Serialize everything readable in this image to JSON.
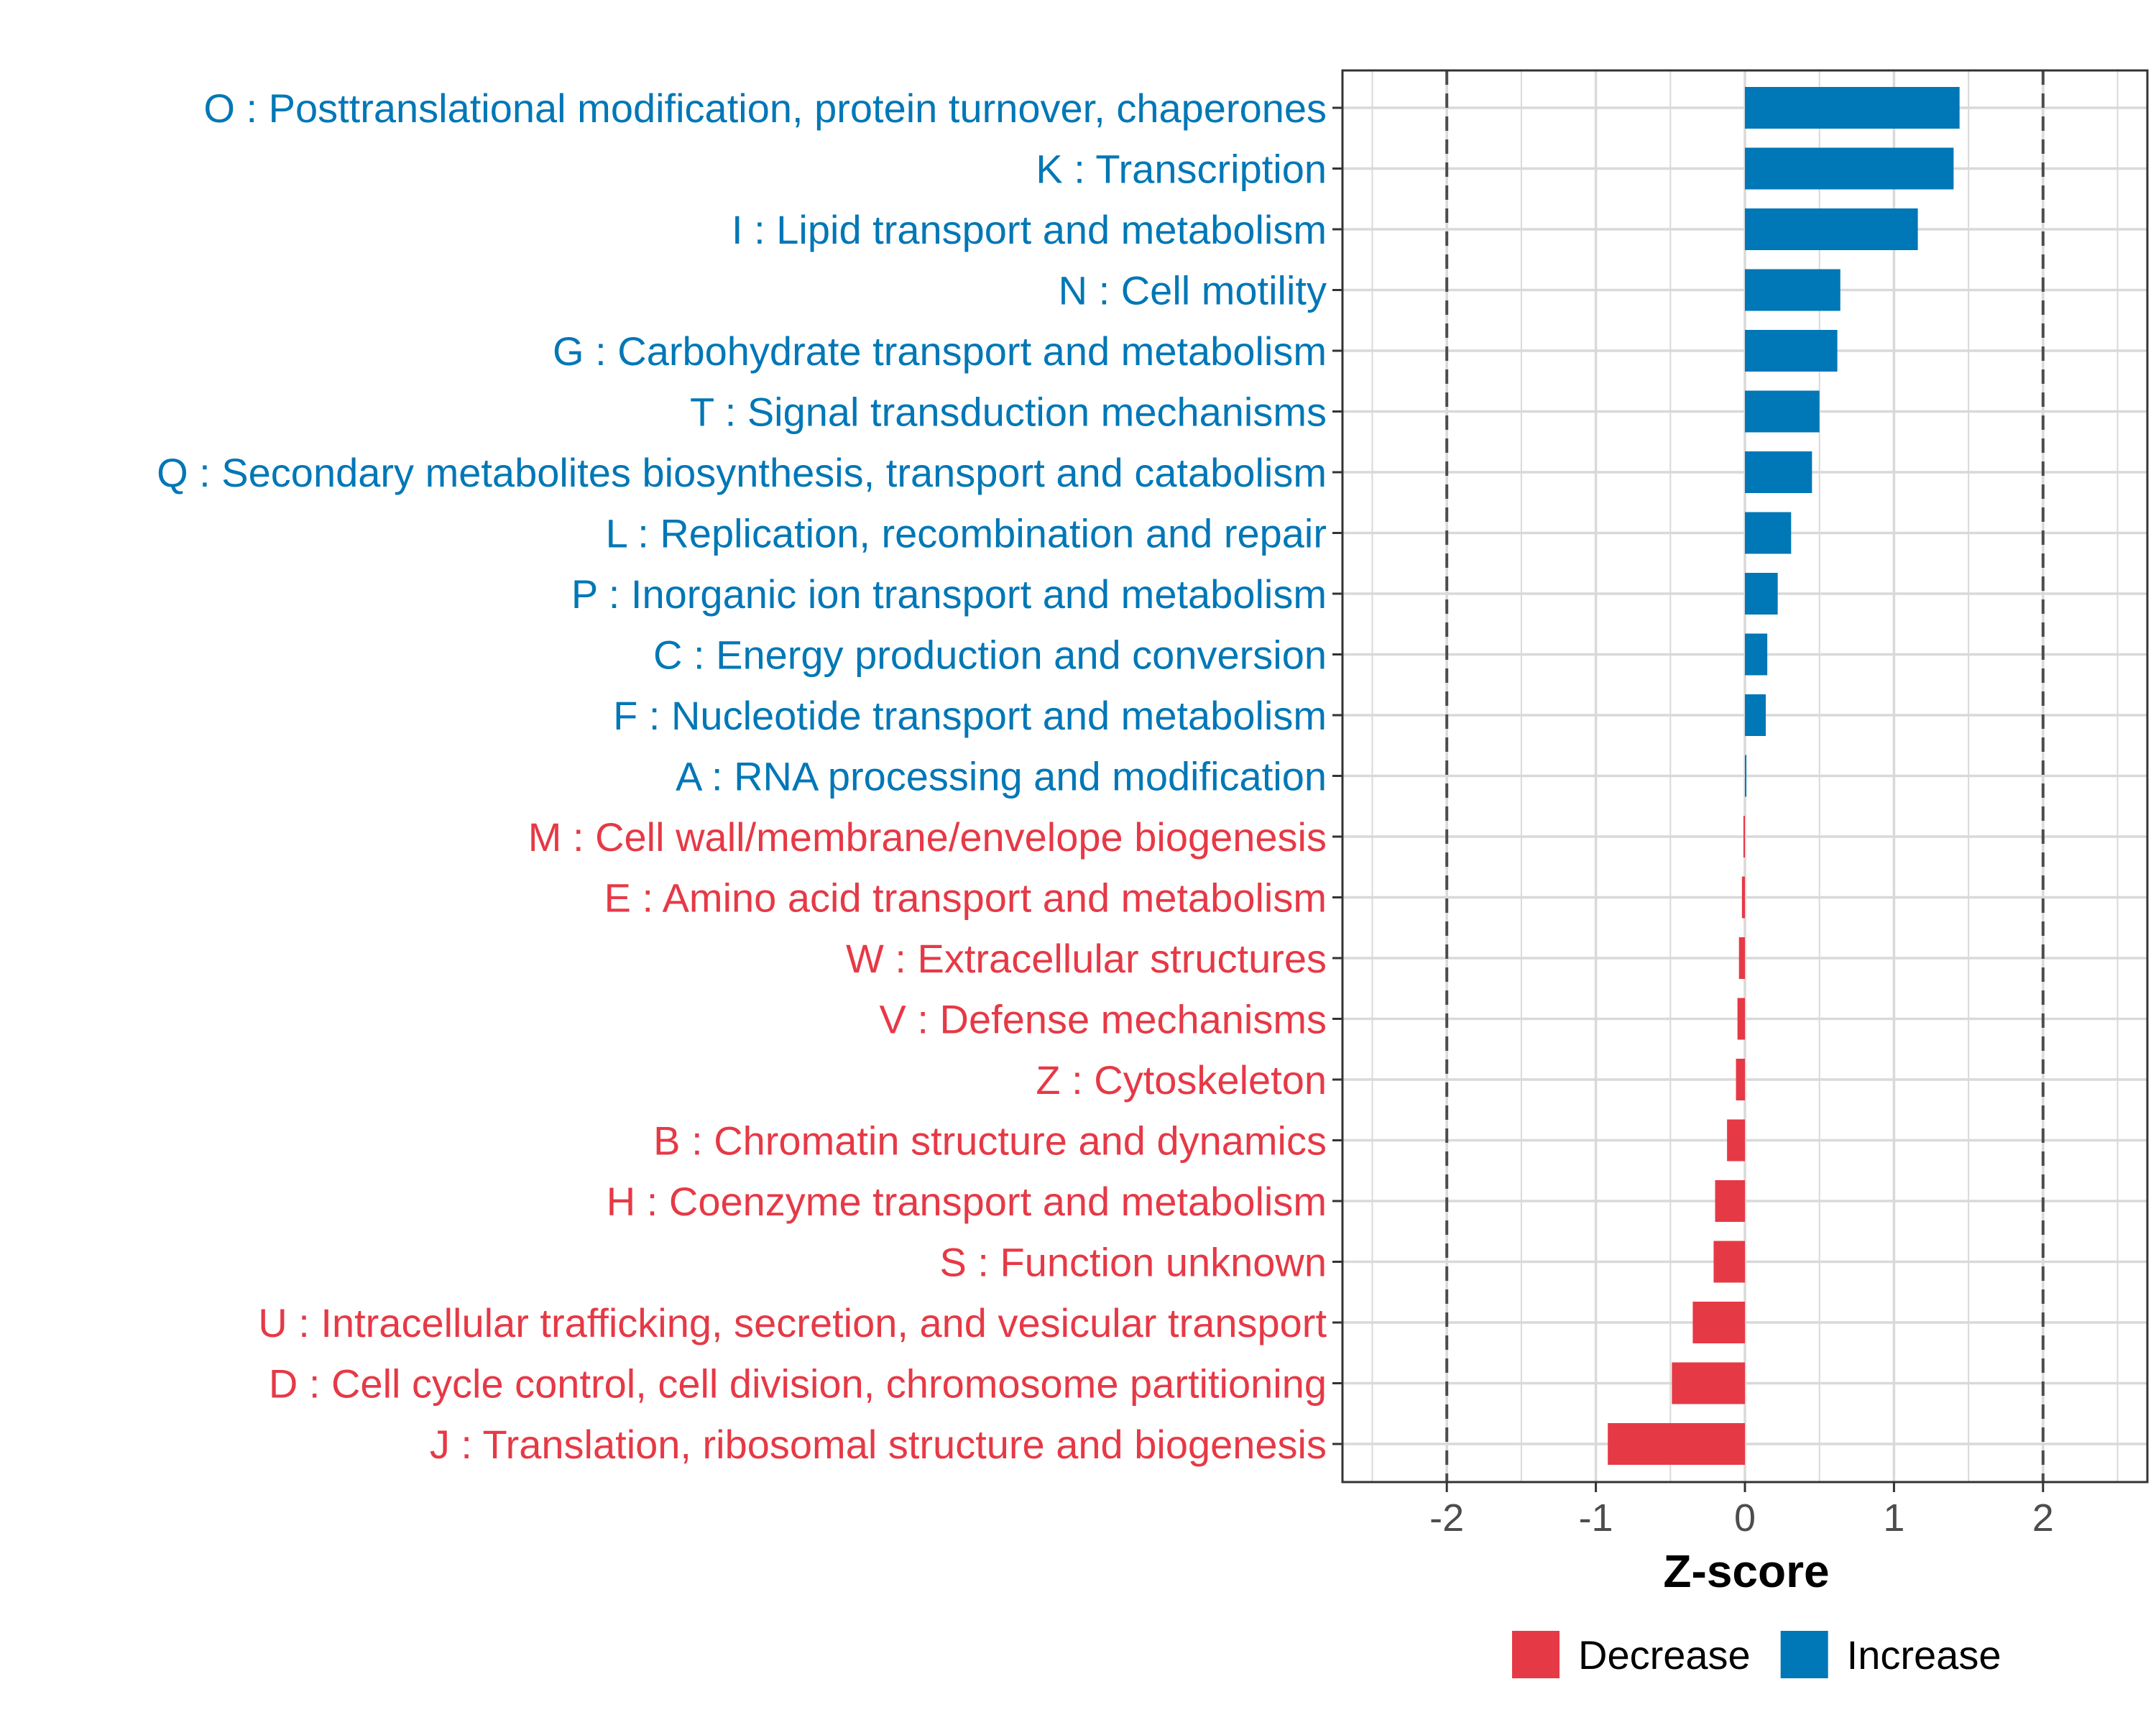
{
  "chart_data": {
    "type": "bar",
    "orientation": "horizontal",
    "title": "",
    "xlabel": "Z-score",
    "ylabel": "",
    "xlim": [
      -2.7,
      2.7
    ],
    "xticks": [
      -2,
      -1,
      0,
      1,
      2
    ],
    "xtick_labels": [
      "-2",
      "-1",
      "0",
      "1",
      "2"
    ],
    "reference_lines": [
      -2,
      2
    ],
    "grid": true,
    "categories": [
      "O : Posttranslational modification, protein turnover, chaperones",
      "K : Transcription",
      "I : Lipid transport and metabolism",
      "N : Cell motility",
      "G : Carbohydrate transport and metabolism",
      "T : Signal transduction mechanisms",
      "Q : Secondary metabolites biosynthesis, transport and catabolism",
      "L : Replication, recombination and repair",
      "P : Inorganic ion transport and metabolism",
      "C : Energy production and conversion",
      "F : Nucleotide transport and metabolism",
      "A : RNA processing and modification",
      "M : Cell wall/membrane/envelope biogenesis",
      "E : Amino acid transport and metabolism",
      "W : Extracellular structures",
      "V : Defense mechanisms",
      "Z : Cytoskeleton",
      "B : Chromatin structure and dynamics",
      "H : Coenzyme transport and metabolism",
      "S : Function unknown",
      "U : Intracellular trafficking, secretion, and vesicular transport",
      "D : Cell cycle control, cell division, chromosome partitioning",
      "J : Translation, ribosomal structure and biogenesis"
    ],
    "values": [
      1.44,
      1.4,
      1.16,
      0.64,
      0.62,
      0.5,
      0.45,
      0.31,
      0.22,
      0.15,
      0.14,
      0.01,
      -0.01,
      -0.02,
      -0.04,
      -0.05,
      -0.06,
      -0.12,
      -0.2,
      -0.21,
      -0.35,
      -0.49,
      -0.92
    ],
    "groups": [
      "Increase",
      "Increase",
      "Increase",
      "Increase",
      "Increase",
      "Increase",
      "Increase",
      "Increase",
      "Increase",
      "Increase",
      "Increase",
      "Increase",
      "Decrease",
      "Decrease",
      "Decrease",
      "Decrease",
      "Decrease",
      "Decrease",
      "Decrease",
      "Decrease",
      "Decrease",
      "Decrease",
      "Decrease"
    ],
    "legend": {
      "position": "bottom",
      "entries": [
        {
          "name": "Decrease",
          "color": "#E63946"
        },
        {
          "name": "Increase",
          "color": "#0077B6"
        }
      ]
    },
    "colors": {
      "Increase": "#0077B6",
      "Decrease": "#E63946"
    }
  }
}
